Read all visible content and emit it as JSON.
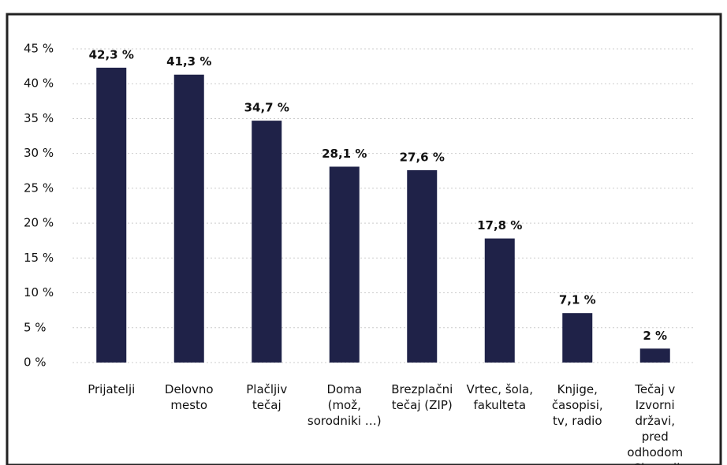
{
  "chart_data": {
    "type": "bar",
    "categories": [
      "Prijatelji",
      "Delovno\nmesto",
      "Plačljiv\ntečaj",
      "Doma\n(mož,\nsorodniki …)",
      "Brezplačni\ntečaj (ZIP)",
      "Vrtec, šola,\nfakulteta",
      "Knjige,\nčasopisi,\ntv, radio",
      "Tečaj v\nIzvorni državi,\npred odhodom\nv Slovenijo"
    ],
    "values": [
      42.3,
      41.3,
      34.7,
      28.1,
      27.6,
      17.8,
      7.1,
      2
    ],
    "value_labels": [
      "42,3 %",
      "41,3 %",
      "34,7 %",
      "28,1 %",
      "27,6 %",
      "17,8 %",
      "7,1 %",
      "2 %"
    ],
    "color": "#1f2248",
    "ylim": [
      0,
      45
    ],
    "yticks": [
      {
        "value": 0,
        "label": "0 %"
      },
      {
        "value": 5,
        "label": "5 %"
      },
      {
        "value": 10,
        "label": "10 %"
      },
      {
        "value": 15,
        "label": "15 %"
      },
      {
        "value": 20,
        "label": "20 %"
      },
      {
        "value": 25,
        "label": "25 %"
      },
      {
        "value": 30,
        "label": "30 %"
      },
      {
        "value": 35,
        "label": "35 %"
      },
      {
        "value": 40,
        "label": "40 %"
      },
      {
        "value": 45,
        "label": "45 %"
      }
    ],
    "grid": true
  }
}
